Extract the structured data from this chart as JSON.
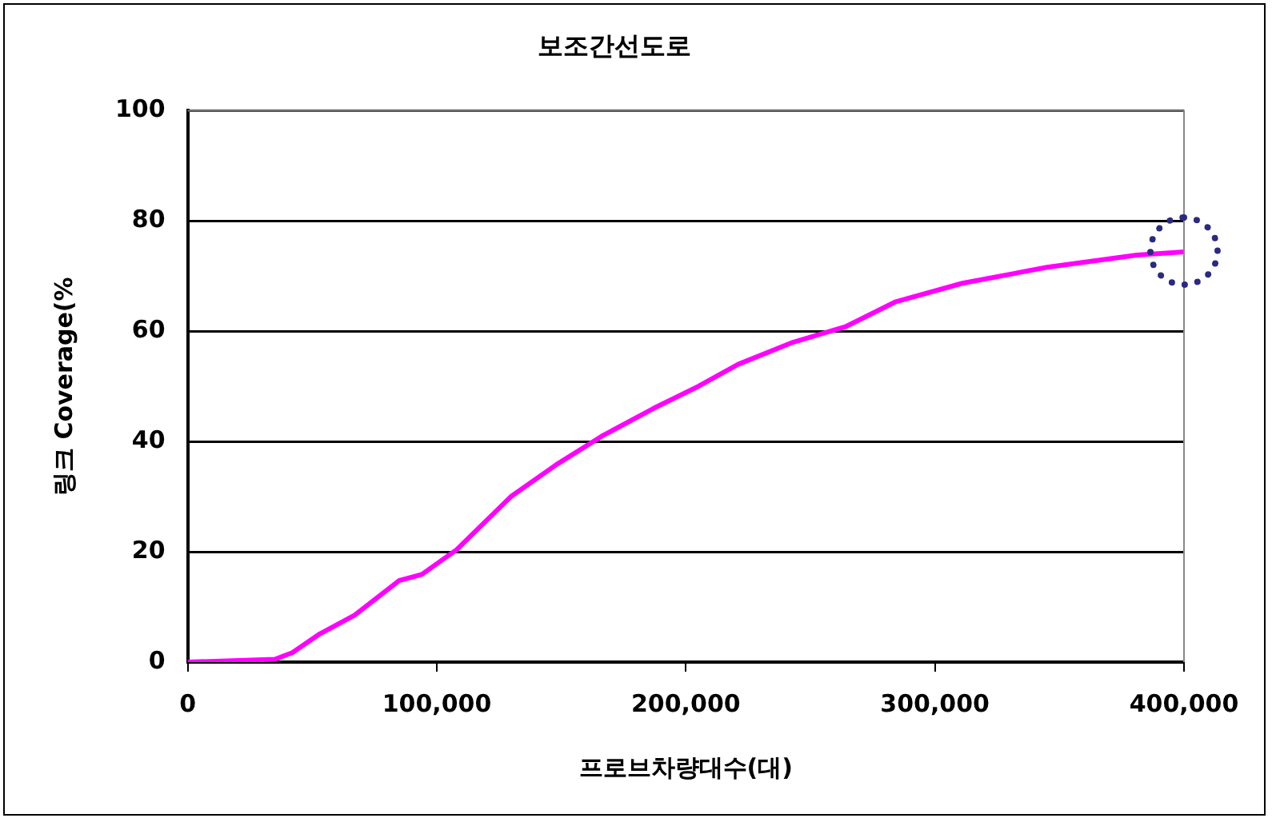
{
  "chart_data": {
    "type": "line",
    "title": "보조간선도로",
    "xlabel": "프로브차량대수(대)",
    "ylabel": "링크 Coverage(%",
    "x": [
      0,
      35000,
      42000,
      53000,
      67000,
      85000,
      94000,
      108000,
      130000,
      148000,
      166000,
      187000,
      205000,
      221000,
      243000,
      264000,
      284000,
      311000,
      345000,
      381000,
      400000
    ],
    "series": [
      {
        "color": "#ff00ff",
        "values": [
          0,
          0.5,
          1.7,
          5.1,
          8.5,
          14.8,
          15.9,
          20.4,
          30.1,
          35.8,
          40.9,
          46,
          50,
          54,
          58,
          60.8,
          65.3,
          68.7,
          71.6,
          73.8,
          74.4
        ]
      }
    ],
    "xlim": [
      0,
      400000
    ],
    "xticks": [
      {
        "value": 0,
        "label": "0"
      },
      {
        "value": 100000,
        "label": "100,000"
      },
      {
        "value": 200000,
        "label": "200,000"
      },
      {
        "value": 300000,
        "label": "300,000"
      },
      {
        "value": 400000,
        "label": "400,000"
      }
    ],
    "ylim": [
      0,
      100
    ],
    "yticks": [
      0,
      20,
      40,
      60,
      80,
      100
    ],
    "grid": "y",
    "legend": false,
    "marker": "none",
    "line_style": "solid"
  }
}
